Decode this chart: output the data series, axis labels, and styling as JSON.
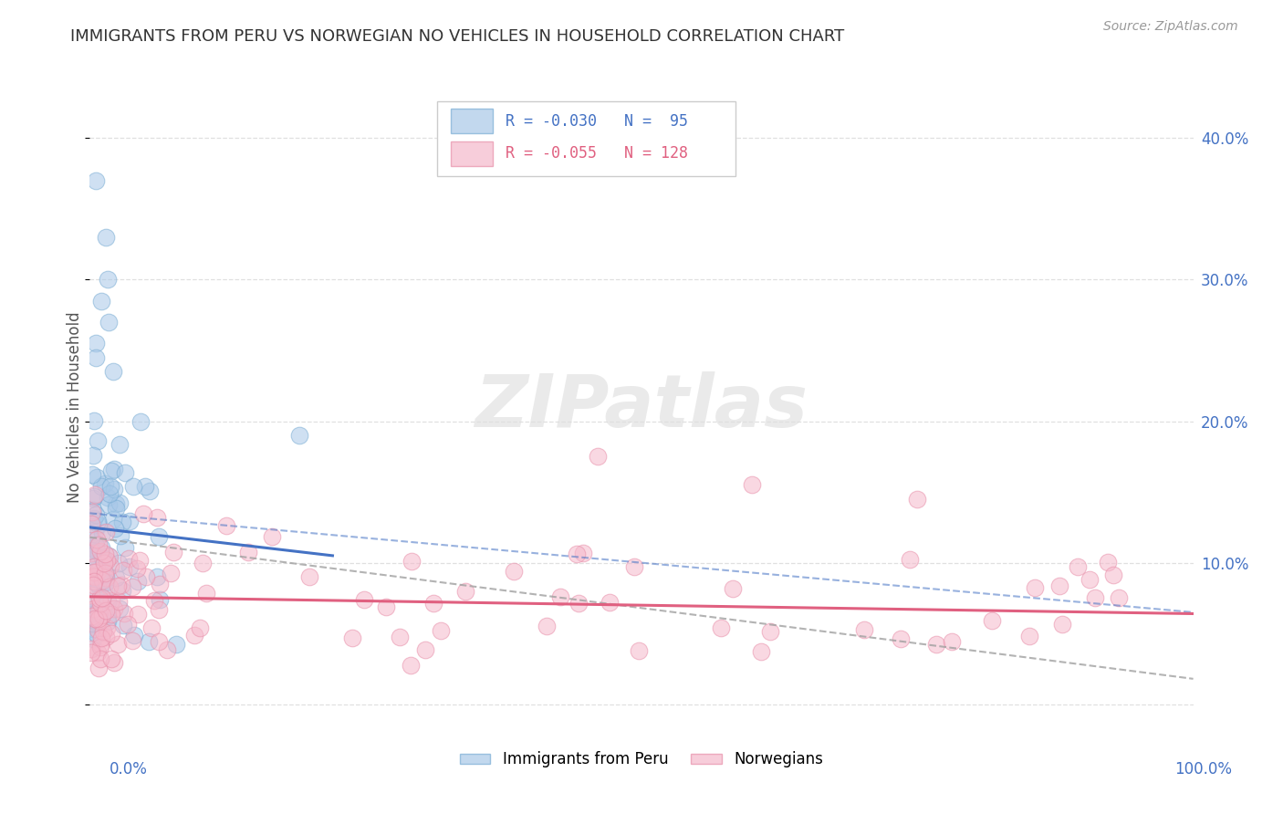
{
  "title": "IMMIGRANTS FROM PERU VS NORWEGIAN NO VEHICLES IN HOUSEHOLD CORRELATION CHART",
  "source": "Source: ZipAtlas.com",
  "ylabel": "No Vehicles in Household",
  "xlim": [
    0.0,
    1.0
  ],
  "ylim": [
    -0.02,
    0.44
  ],
  "legend_r1": "R = -0.030",
  "legend_n1": "N =  95",
  "legend_r2": "R = -0.055",
  "legend_n2": "N = 128",
  "color_peru": "#a8c8e8",
  "color_peru_edge": "#7aadd4",
  "color_norway": "#f5b8cb",
  "color_norway_edge": "#e890aa",
  "color_peru_line": "#4472C4",
  "color_norway_line": "#e06080",
  "color_dashed": "#a0a0a0",
  "background_color": "#ffffff",
  "grid_color": "#e0e0e0",
  "watermark": "ZIPatlas",
  "peru_seed": 42,
  "norway_seed": 77
}
